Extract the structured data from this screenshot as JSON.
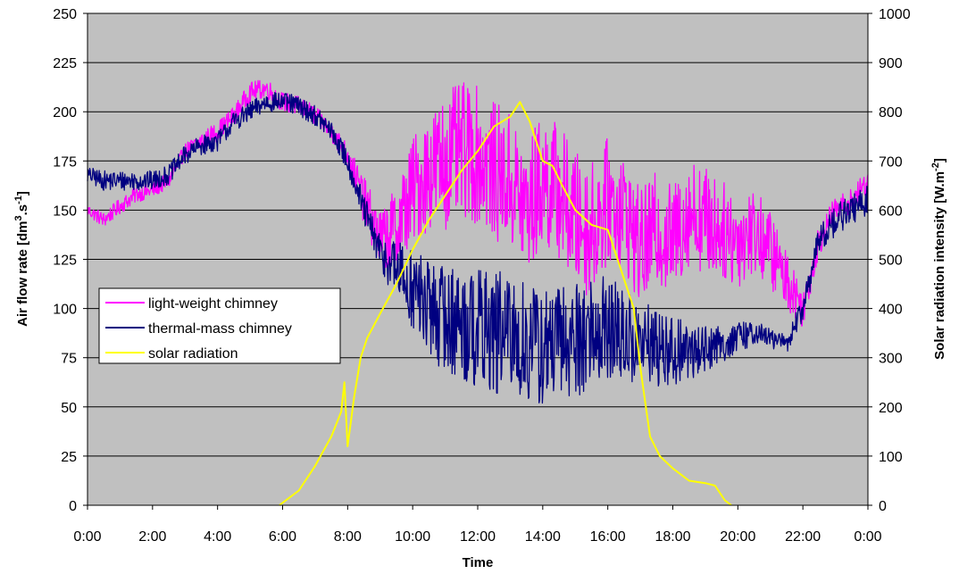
{
  "chart_data": {
    "type": "line",
    "title": "",
    "xlabel": "Time",
    "ylabel_left": {
      "main": "Air flow rate [dm",
      "sup1": "3",
      "mid": ".s",
      "sup2": "-1",
      "end": "]"
    },
    "ylabel_right": {
      "main": "Solar radiation intensity [W.m",
      "sup": "-2",
      "end": "]"
    },
    "x_ticks": [
      "0:00",
      "2:00",
      "4:00",
      "6:00",
      "8:00",
      "10:00",
      "12:00",
      "14:00",
      "16:00",
      "18:00",
      "20:00",
      "22:00",
      "0:00"
    ],
    "y_left_ticks": [
      "0",
      "25",
      "50",
      "75",
      "100",
      "125",
      "150",
      "175",
      "200",
      "225",
      "250"
    ],
    "y_right_ticks": [
      "0",
      "100",
      "200",
      "300",
      "400",
      "500",
      "600",
      "700",
      "800",
      "900",
      "1000"
    ],
    "ylim_left": [
      0,
      250
    ],
    "ylim_right": [
      0,
      1000
    ],
    "xlim_hours": [
      0,
      24
    ],
    "grid": "horizontal",
    "plot_background": "#c0c0c0",
    "legend_position": "left-middle",
    "series": [
      {
        "name": "light-weight chimney",
        "axis": "left",
        "color": "#ff00ff",
        "x_hours": [
          0,
          0.5,
          1,
          1.5,
          2,
          2.5,
          3,
          3.5,
          4,
          4.5,
          5,
          5.5,
          6,
          6.5,
          7,
          7.5,
          8,
          8.5,
          9,
          9.5,
          10,
          10.5,
          11,
          11.5,
          12,
          12.5,
          13,
          13.5,
          14,
          14.5,
          15,
          15.5,
          16,
          16.5,
          17,
          17.5,
          18,
          18.5,
          19,
          19.5,
          20,
          20.5,
          21,
          21.5,
          22,
          22.5,
          23,
          23.5,
          24
        ],
        "values": [
          150,
          145,
          152,
          158,
          160,
          165,
          180,
          185,
          190,
          198,
          210,
          212,
          205,
          203,
          198,
          190,
          178,
          155,
          135,
          140,
          160,
          170,
          175,
          180,
          178,
          170,
          165,
          150,
          165,
          160,
          145,
          140,
          155,
          150,
          130,
          140,
          135,
          150,
          145,
          140,
          135,
          140,
          130,
          115,
          100,
          135,
          150,
          155,
          165
        ],
        "noise": [
          3,
          4,
          4,
          4,
          4,
          4,
          4,
          5,
          5,
          5,
          5,
          5,
          5,
          5,
          5,
          5,
          6,
          12,
          15,
          22,
          28,
          30,
          35,
          35,
          35,
          35,
          35,
          35,
          35,
          35,
          35,
          35,
          32,
          30,
          30,
          30,
          28,
          28,
          28,
          25,
          25,
          22,
          20,
          15,
          10,
          8,
          7,
          6,
          6
        ]
      },
      {
        "name": "thermal-mass chimney",
        "axis": "left",
        "color": "#000080",
        "x_hours": [
          0,
          0.5,
          1,
          1.5,
          2,
          2.5,
          3,
          3.5,
          4,
          4.5,
          5,
          5.5,
          6,
          6.5,
          7,
          7.5,
          8,
          8.5,
          9,
          9.5,
          10,
          10.5,
          11,
          11.5,
          12,
          12.5,
          13,
          13.5,
          14,
          14.5,
          15,
          15.5,
          16,
          16.5,
          17,
          17.5,
          18,
          18.5,
          19,
          19.5,
          20,
          20.5,
          21,
          21.5,
          22,
          22.5,
          23,
          23.5,
          24
        ],
        "values": [
          168,
          165,
          165,
          165,
          165,
          168,
          178,
          183,
          185,
          195,
          200,
          205,
          205,
          203,
          198,
          190,
          175,
          150,
          128,
          120,
          110,
          100,
          95,
          92,
          90,
          88,
          85,
          82,
          80,
          82,
          85,
          88,
          90,
          85,
          82,
          80,
          78,
          78,
          80,
          82,
          85,
          88,
          85,
          82,
          100,
          135,
          145,
          150,
          155
        ],
        "noise": [
          4,
          5,
          5,
          5,
          5,
          5,
          5,
          5,
          5,
          5,
          5,
          5,
          5,
          5,
          5,
          5,
          6,
          8,
          10,
          15,
          22,
          25,
          28,
          30,
          32,
          32,
          32,
          32,
          32,
          30,
          30,
          30,
          28,
          25,
          22,
          20,
          18,
          15,
          12,
          10,
          8,
          6,
          5,
          5,
          6,
          8,
          8,
          8,
          8
        ]
      },
      {
        "name": "solar radiation",
        "axis": "right",
        "color": "#ffff00",
        "x_hours": [
          5.9,
          6.0,
          6.5,
          7.0,
          7.5,
          7.8,
          7.9,
          8.0,
          8.2,
          8.4,
          8.6,
          9.0,
          9.5,
          10.0,
          10.5,
          11.0,
          11.5,
          12.0,
          12.5,
          13.0,
          13.3,
          13.6,
          14.0,
          14.3,
          14.6,
          15.0,
          15.5,
          16.0,
          16.3,
          16.6,
          16.8,
          17.0,
          17.3,
          17.6,
          18.0,
          18.5,
          19.0,
          19.3,
          19.6,
          19.8
        ],
        "values": [
          0,
          5,
          30,
          80,
          140,
          190,
          250,
          120,
          220,
          300,
          340,
          390,
          450,
          520,
          580,
          630,
          680,
          720,
          770,
          790,
          820,
          780,
          700,
          690,
          650,
          600,
          570,
          560,
          500,
          440,
          400,
          280,
          140,
          100,
          75,
          50,
          45,
          40,
          10,
          0
        ]
      }
    ]
  }
}
